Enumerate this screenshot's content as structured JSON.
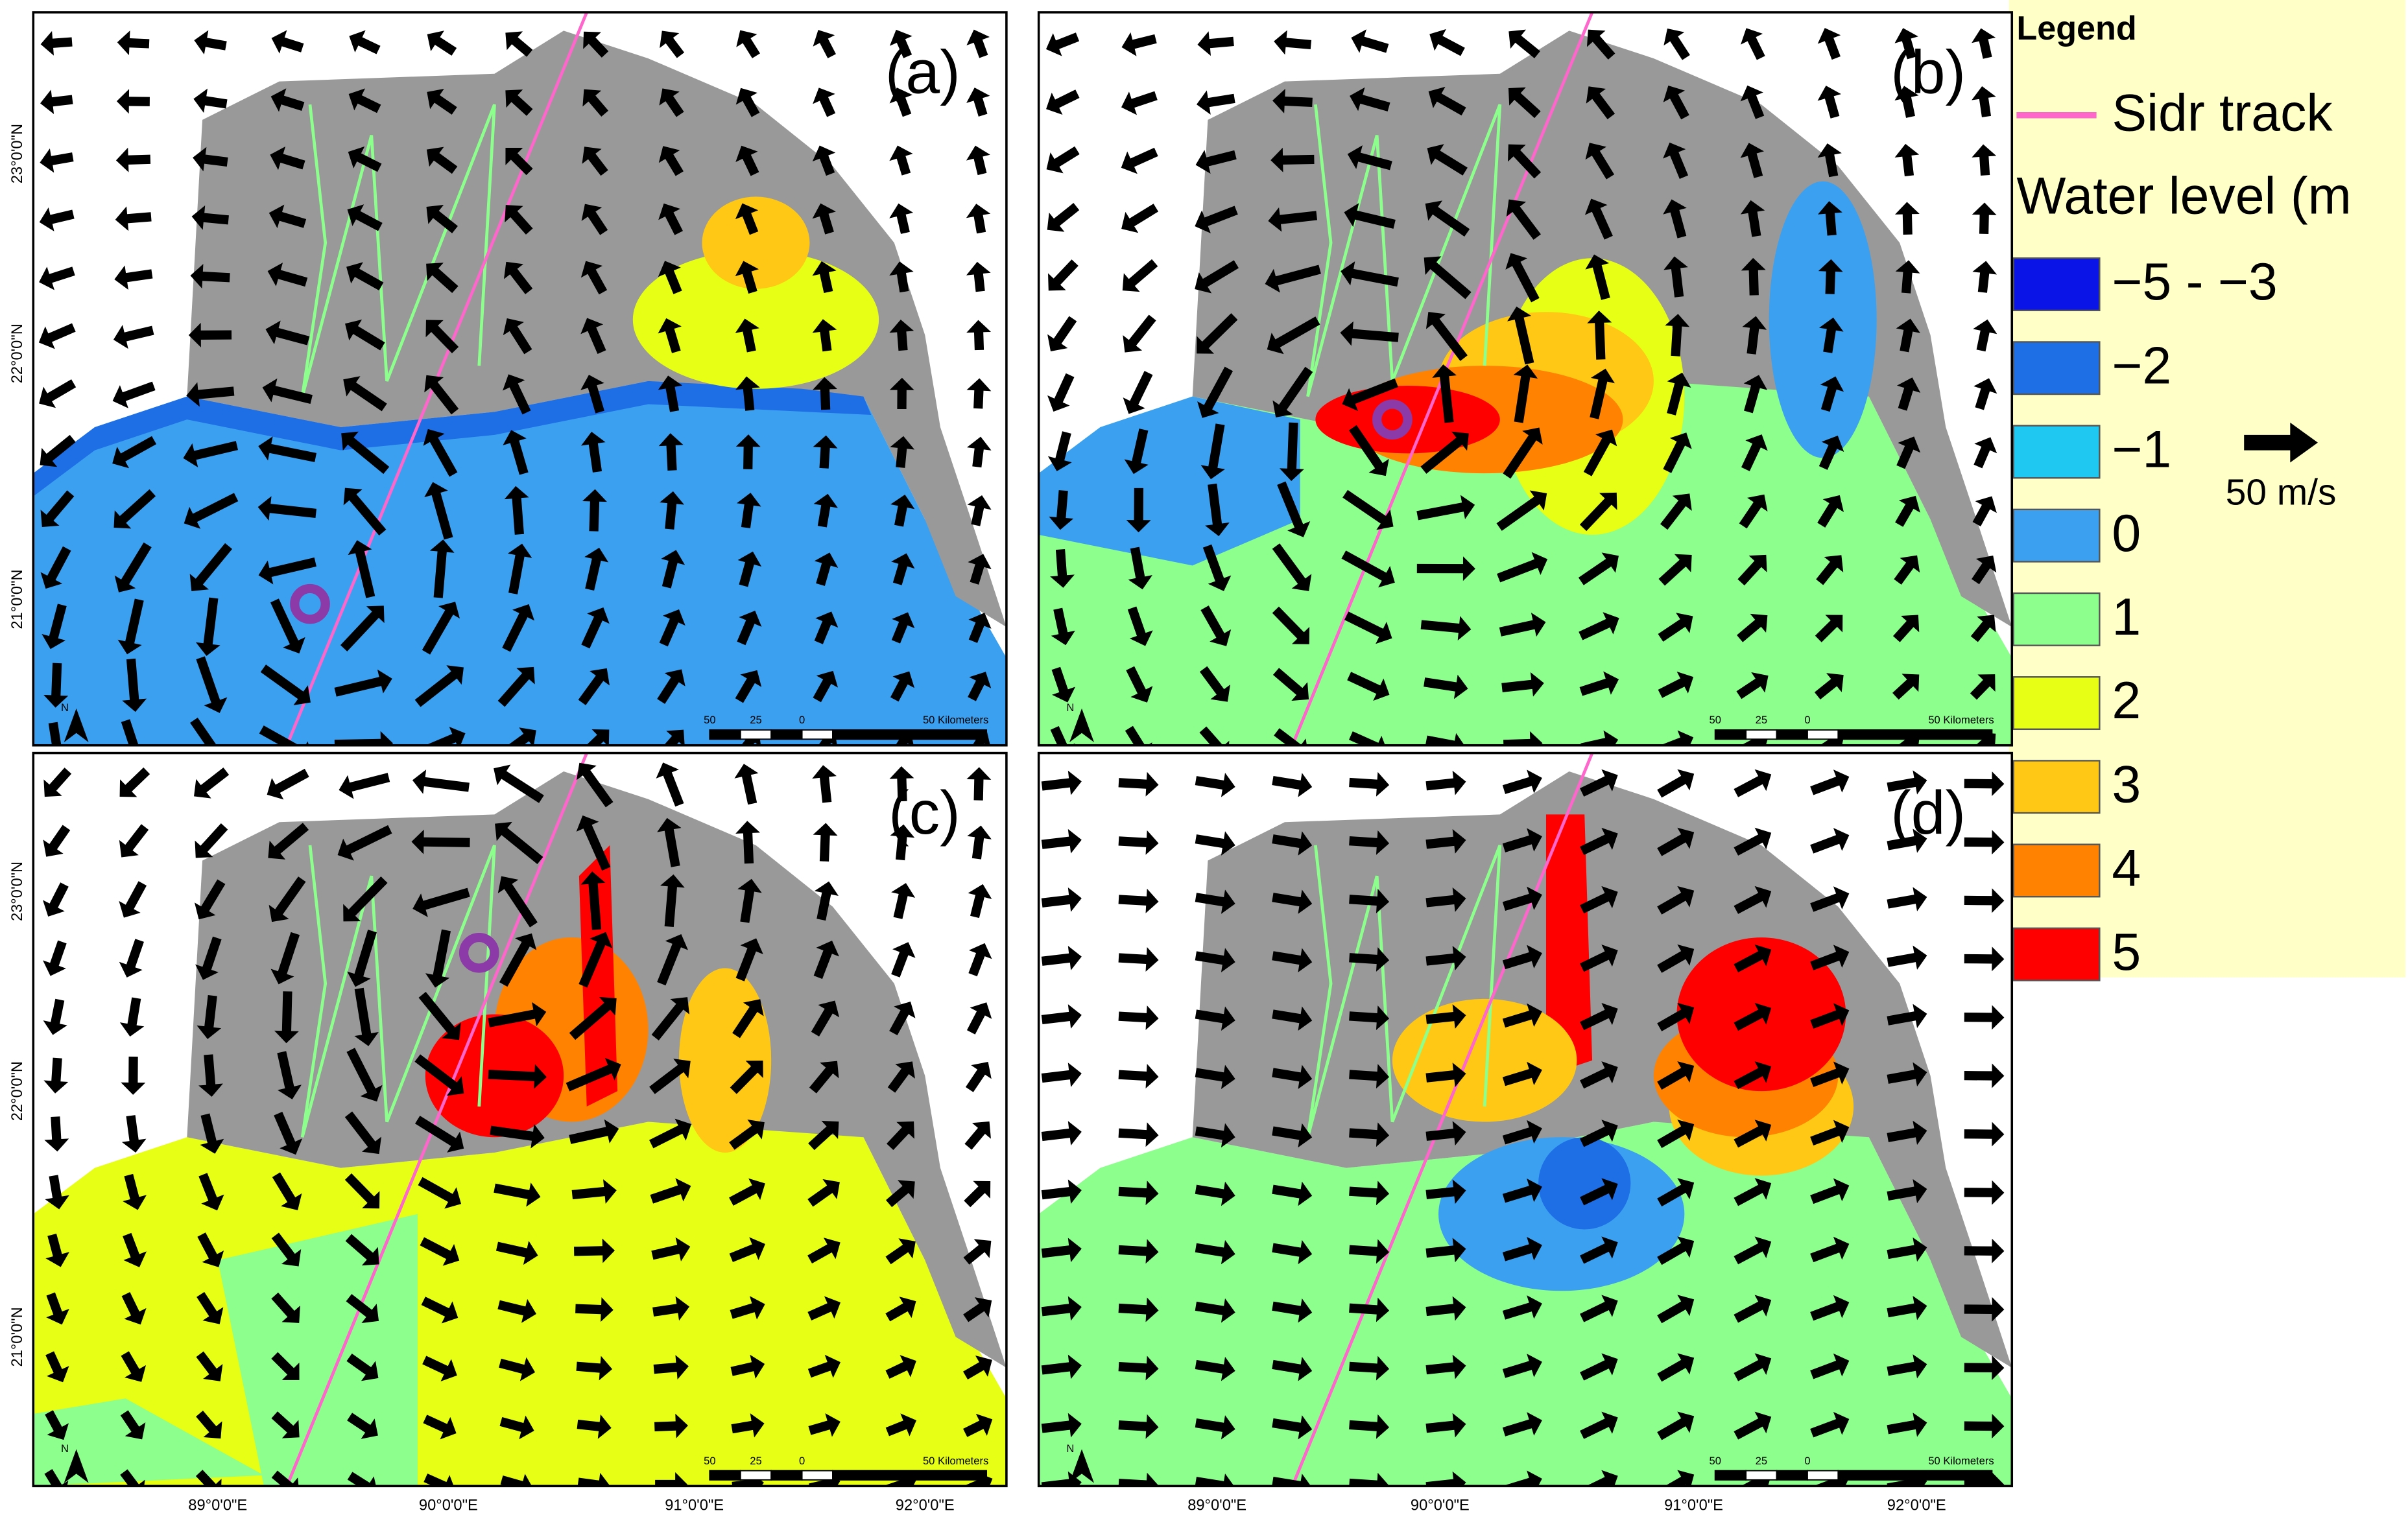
{
  "panels": [
    {
      "label": "(a)"
    },
    {
      "label": "(b)"
    },
    {
      "label": "(c)"
    },
    {
      "label": "(d)"
    }
  ],
  "legend": {
    "title": "Legend",
    "track_label": "Sidr track",
    "track_color": "#ff66cc",
    "water_level_title": "Water level (m",
    "classes": [
      {
        "label": "−5 - −3",
        "color": "#0a14e6"
      },
      {
        "label": "−2",
        "color": "#1e6ee6"
      },
      {
        "label": "−1",
        "color": "#1ec8f0"
      },
      {
        "label": "0",
        "color": "#3ca0f0"
      },
      {
        "label": "1",
        "color": "#8cff8c"
      },
      {
        "label": "2",
        "color": "#e6ff14"
      },
      {
        "label": "3",
        "color": "#ffc814"
      },
      {
        "label": "4",
        "color": "#ff8200"
      },
      {
        "label": "5",
        "color": "#ff0000"
      }
    ],
    "vector_label": "50 m/s"
  },
  "latitude_labels": [
    "23°0'0\"N",
    "22°0'0\"N",
    "21°0'0\"N"
  ],
  "longitude_labels": [
    "89°0'0\"E",
    "90°0'0\"E",
    "91°0'0\"E",
    "92°0'0\"E"
  ],
  "scale_bar": {
    "labels": [
      "50",
      "25",
      "0",
      "50 Kilometers"
    ]
  },
  "north_label": "N"
}
